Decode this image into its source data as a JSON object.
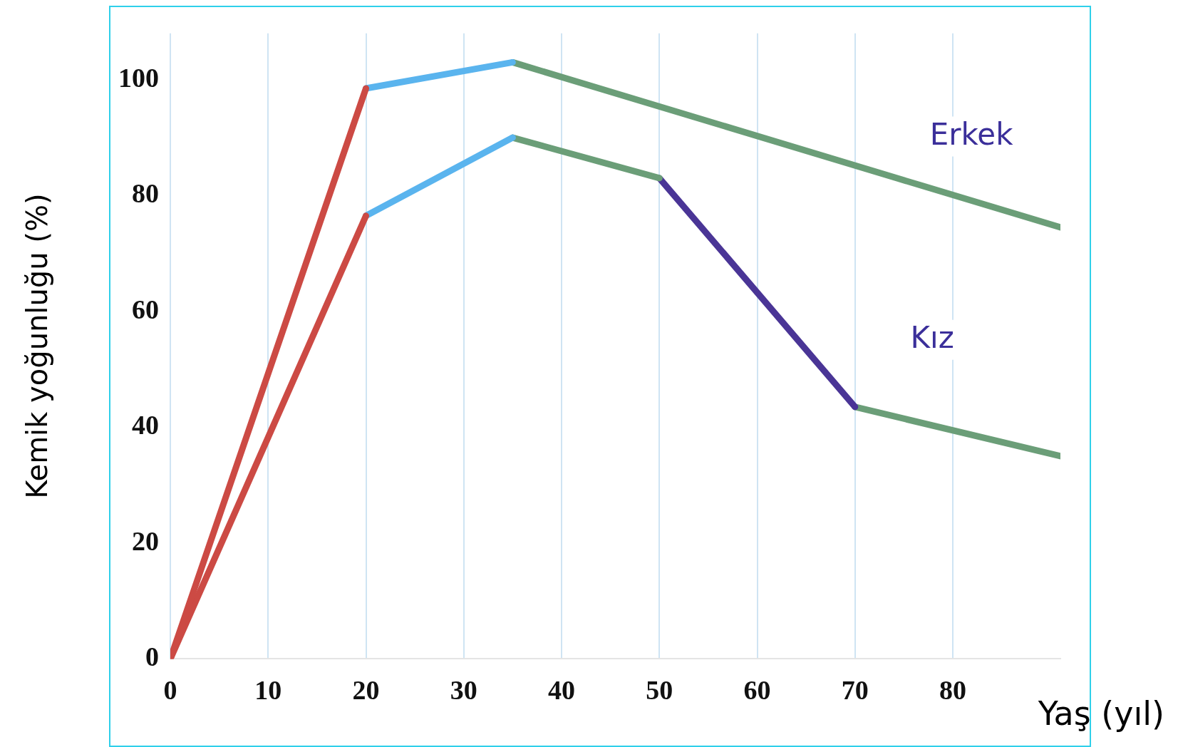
{
  "chart_data": {
    "type": "line",
    "xlabel": "Yaş (yıl)",
    "ylabel": "Kemik yoğunluğu (%)",
    "series": [
      {
        "x": [
          0,
          20
        ],
        "values": [
          0,
          98.5
        ],
        "color": "#cc4a44"
      },
      {
        "x": [
          20,
          35
        ],
        "values": [
          98.5,
          103
        ],
        "color": "#5ab4ee"
      },
      {
        "x": [
          35,
          91
        ],
        "values": [
          103,
          74.5
        ],
        "color": "#6b9e78"
      },
      {
        "x": [
          0,
          20
        ],
        "values": [
          0,
          76.5
        ],
        "color": "#cc4a44"
      },
      {
        "x": [
          20,
          35
        ],
        "values": [
          76.5,
          90
        ],
        "color": "#5ab4ee"
      },
      {
        "x": [
          35,
          50
        ],
        "values": [
          90,
          83
        ],
        "color": "#6b9e78"
      },
      {
        "x": [
          50,
          70
        ],
        "values": [
          83,
          43.5
        ],
        "color": "#4a3596"
      },
      {
        "x": [
          70,
          91
        ],
        "values": [
          43.5,
          35
        ],
        "color": "#6b9e78"
      }
    ],
    "annotations": [
      "Erkek",
      "Kız"
    ],
    "xlim": [
      0,
      91
    ],
    "xticks": [
      0,
      10,
      20,
      30,
      40,
      50,
      60,
      70,
      80
    ],
    "ylim": [
      0,
      108
    ],
    "yticks": [
      0,
      20,
      40,
      60,
      80,
      100
    ],
    "grid": "x",
    "legend": false,
    "marker": "none",
    "line_style": "solid"
  }
}
